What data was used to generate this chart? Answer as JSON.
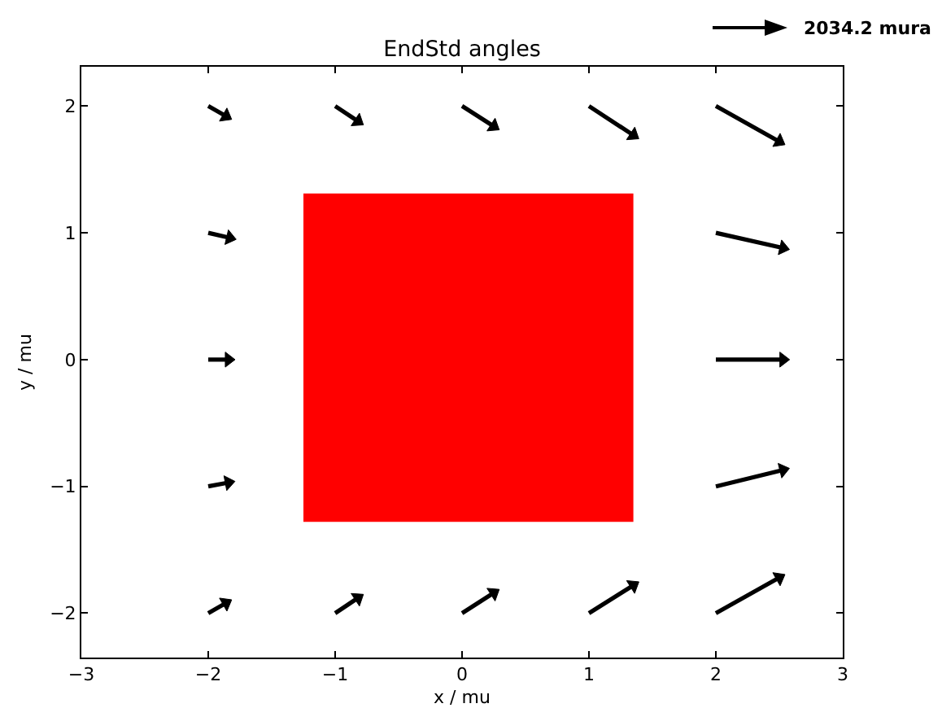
{
  "chart_data": {
    "type": "line",
    "title": "EndStd angles",
    "xlabel": "x / mu",
    "ylabel": "y / mu",
    "annotations": [
      "2034.2 mura"
    ],
    "xlim": [
      -3,
      3
    ],
    "xticks": [
      {
        "value": -3,
        "label": "−3"
      },
      {
        "value": -2,
        "label": "−2"
      },
      {
        "value": -1,
        "label": "−1"
      },
      0,
      1,
      2,
      3
    ],
    "ylim": [
      -2.35,
      2.31
    ],
    "yticks": [
      {
        "value": -2,
        "label": "−2"
      },
      {
        "value": -1,
        "label": "−1"
      },
      0,
      1,
      2
    ],
    "marker": "triangle",
    "series": [
      {
        "color": "#000000",
        "x": [
          -2,
          -1.86
        ],
        "values": [
          2,
          1.92
        ]
      },
      {
        "color": "#000000",
        "x": [
          -2,
          -1.83
        ],
        "values": [
          1,
          0.96
        ]
      },
      {
        "color": "#000000",
        "x": [
          -2,
          -1.84
        ],
        "values": [
          0,
          0
        ]
      },
      {
        "color": "#000000",
        "x": [
          -2,
          -1.84
        ],
        "values": [
          -1,
          -0.97
        ]
      },
      {
        "color": "#000000",
        "x": [
          -2,
          -1.86
        ],
        "values": [
          -2,
          -1.92
        ]
      },
      {
        "color": "#000000",
        "x": [
          -1,
          -0.82
        ],
        "values": [
          2,
          1.88
        ]
      },
      {
        "color": "#000000",
        "x": [
          -1,
          -0.82
        ],
        "values": [
          -2,
          -1.88
        ]
      },
      {
        "color": "#000000",
        "x": [
          0,
          0.25
        ],
        "values": [
          2,
          1.84
        ]
      },
      {
        "color": "#000000",
        "x": [
          0,
          0.25
        ],
        "values": [
          -2,
          -1.84
        ]
      },
      {
        "color": "#000000",
        "x": [
          1,
          1.35
        ],
        "values": [
          2,
          1.77
        ]
      },
      {
        "color": "#000000",
        "x": [
          1,
          1.35
        ],
        "values": [
          -2,
          -1.78
        ]
      },
      {
        "color": "#000000",
        "x": [
          2,
          2.5
        ],
        "values": [
          2,
          1.72
        ]
      },
      {
        "color": "#000000",
        "x": [
          2,
          2.53
        ],
        "values": [
          1,
          0.88
        ]
      },
      {
        "color": "#000000",
        "x": [
          2,
          2.53
        ],
        "values": [
          0,
          0
        ]
      },
      {
        "color": "#000000",
        "x": [
          2,
          2.53
        ],
        "values": [
          -1,
          -0.87
        ]
      },
      {
        "color": "#000000",
        "x": [
          2,
          2.5
        ],
        "values": [
          -2,
          -1.72
        ]
      },
      {
        "type": "area",
        "marker": "none",
        "color": "#ff0000",
        "x": [
          -1.25,
          -1.25,
          1.35,
          1.35,
          -1.25
        ],
        "values": [
          -1.28,
          1.31,
          1.31,
          -1.28,
          -1.28
        ]
      }
    ]
  }
}
